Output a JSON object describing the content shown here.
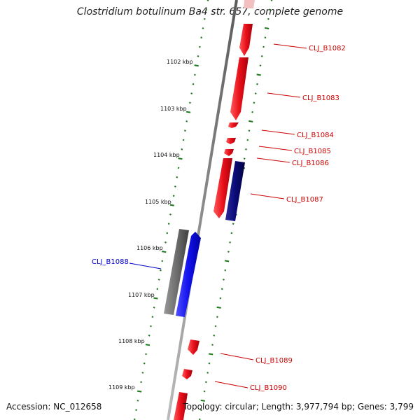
{
  "title": "Clostridium botulinum Ba4 str. 657, complete genome",
  "accession": "Accession: NC_012658",
  "topology": "Topology: circular; Length: 3,977,794 bp; Genes: 3,799",
  "colors": {
    "forward_gene": "#e8101a",
    "reverse_gene": "#1212ee",
    "dark_gene": "#0a0a78",
    "pseudo_gene": "#6e6e6e",
    "tick": "#1d7a1d",
    "backbone": "#8c8c8c",
    "label_forward": "#cc0000",
    "label_reverse": "#0000cc"
  },
  "tick_labels": [
    "1102 kbp",
    "1103 kbp",
    "1104 kbp",
    "1105 kbp",
    "1106 kbp",
    "1107 kbp",
    "1108 kbp",
    "1109 kbp"
  ],
  "gene_labels": [
    "CLJ_B1082",
    "CLJ_B1083",
    "CLJ_B1084",
    "CLJ_B1085",
    "CLJ_B1086",
    "CLJ_B1087",
    "CLJ_B1088",
    "CLJ_B1089",
    "CLJ_B1090"
  ]
}
